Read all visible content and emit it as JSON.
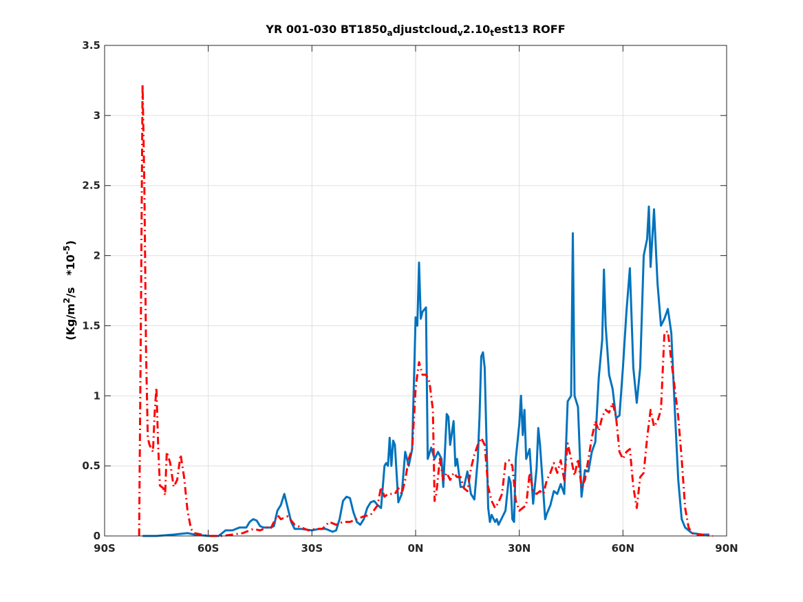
{
  "chart_data": {
    "type": "line",
    "title": {
      "main": "YR 001-030 BT1850",
      "parts": [
        {
          "text": "YR 001-030 BT1850",
          "sub": false
        },
        {
          "text": "a",
          "sub": true
        },
        {
          "text": "djustcloud",
          "sub": false
        },
        {
          "text": "v",
          "sub": true
        },
        {
          "text": "2.10",
          "sub": false
        },
        {
          "text": "t",
          "sub": true
        },
        {
          "text": "est13 ROFF",
          "sub": false
        }
      ]
    },
    "ylabel": {
      "prefix": "(Kg/m",
      "sup1": "2",
      "middle": "/s   *10",
      "sup2": "-5",
      "suffix": ")"
    },
    "xlim": [
      -90,
      90
    ],
    "ylim": [
      0,
      3.5
    ],
    "xticks": [
      -90,
      -60,
      -30,
      0,
      30,
      60,
      90
    ],
    "xtick_labels": [
      "90S",
      "60S",
      "30S",
      "0N",
      "30N",
      "60N",
      "90N"
    ],
    "yticks": [
      0,
      0.5,
      1,
      1.5,
      2,
      2.5,
      3,
      3.5
    ],
    "ytick_labels": [
      "0",
      "0.5",
      "1",
      "1.5",
      "2",
      "2.5",
      "3",
      "3.5"
    ],
    "grid": true,
    "series": [
      {
        "color": "#0072bd",
        "style": "solid",
        "points": [
          [
            -79,
            0.0
          ],
          [
            -75,
            0.0
          ],
          [
            -70,
            0.01
          ],
          [
            -66,
            0.02
          ],
          [
            -64,
            0.01
          ],
          [
            -60,
            0.0
          ],
          [
            -57,
            0.0
          ],
          [
            -55,
            0.04
          ],
          [
            -53,
            0.04
          ],
          [
            -51,
            0.06
          ],
          [
            -49,
            0.06
          ],
          [
            -48,
            0.1
          ],
          [
            -47,
            0.12
          ],
          [
            -46,
            0.11
          ],
          [
            -45,
            0.07
          ],
          [
            -44,
            0.06
          ],
          [
            -42,
            0.06
          ],
          [
            -41,
            0.07
          ],
          [
            -40,
            0.18
          ],
          [
            -39,
            0.22
          ],
          [
            -38,
            0.3
          ],
          [
            -37,
            0.2
          ],
          [
            -36,
            0.1
          ],
          [
            -35,
            0.05
          ],
          [
            -33,
            0.05
          ],
          [
            -30,
            0.04
          ],
          [
            -28,
            0.05
          ],
          [
            -26,
            0.05
          ],
          [
            -25,
            0.04
          ],
          [
            -24,
            0.03
          ],
          [
            -23,
            0.04
          ],
          [
            -22,
            0.12
          ],
          [
            -21,
            0.25
          ],
          [
            -20,
            0.28
          ],
          [
            -19,
            0.27
          ],
          [
            -18,
            0.17
          ],
          [
            -17,
            0.1
          ],
          [
            -16,
            0.08
          ],
          [
            -15,
            0.12
          ],
          [
            -14,
            0.2
          ],
          [
            -13,
            0.24
          ],
          [
            -12,
            0.25
          ],
          [
            -11,
            0.22
          ],
          [
            -10,
            0.2
          ],
          [
            -9,
            0.5
          ],
          [
            -8.5,
            0.52
          ],
          [
            -8,
            0.5
          ],
          [
            -7.5,
            0.7
          ],
          [
            -7,
            0.5
          ],
          [
            -6.5,
            0.68
          ],
          [
            -6,
            0.65
          ],
          [
            -5,
            0.24
          ],
          [
            -4,
            0.3
          ],
          [
            -3,
            0.6
          ],
          [
            -2,
            0.5
          ],
          [
            -1,
            0.62
          ],
          [
            0,
            1.56
          ],
          [
            0.5,
            1.5
          ],
          [
            1,
            1.95
          ],
          [
            1.5,
            1.55
          ],
          [
            2,
            1.6
          ],
          [
            3,
            1.63
          ],
          [
            3.5,
            0.55
          ],
          [
            4.5,
            0.63
          ],
          [
            5.5,
            0.55
          ],
          [
            6.5,
            0.6
          ],
          [
            7.5,
            0.55
          ],
          [
            8,
            0.35
          ],
          [
            9,
            0.87
          ],
          [
            9.5,
            0.85
          ],
          [
            10,
            0.65
          ],
          [
            11,
            0.82
          ],
          [
            11.5,
            0.5
          ],
          [
            12,
            0.55
          ],
          [
            13,
            0.35
          ],
          [
            14,
            0.35
          ],
          [
            15,
            0.46
          ],
          [
            16,
            0.3
          ],
          [
            17,
            0.26
          ],
          [
            18,
            0.55
          ],
          [
            18.5,
            0.85
          ],
          [
            19,
            1.28
          ],
          [
            19.5,
            1.31
          ],
          [
            20,
            1.2
          ],
          [
            21,
            0.2
          ],
          [
            21.5,
            0.1
          ],
          [
            22,
            0.15
          ],
          [
            23,
            0.1
          ],
          [
            23.5,
            0.12
          ],
          [
            24,
            0.08
          ],
          [
            25,
            0.13
          ],
          [
            26,
            0.18
          ],
          [
            27,
            0.42
          ],
          [
            27.5,
            0.38
          ],
          [
            28,
            0.12
          ],
          [
            28.5,
            0.1
          ],
          [
            29,
            0.55
          ],
          [
            30,
            0.8
          ],
          [
            30.5,
            1.0
          ],
          [
            31,
            0.72
          ],
          [
            31.5,
            0.9
          ],
          [
            32,
            0.55
          ],
          [
            33,
            0.62
          ],
          [
            34,
            0.23
          ],
          [
            35,
            0.48
          ],
          [
            35.5,
            0.77
          ],
          [
            36,
            0.65
          ],
          [
            37,
            0.3
          ],
          [
            37.5,
            0.12
          ],
          [
            38,
            0.16
          ],
          [
            39,
            0.22
          ],
          [
            40,
            0.32
          ],
          [
            41,
            0.3
          ],
          [
            42,
            0.37
          ],
          [
            43,
            0.3
          ],
          [
            44,
            0.96
          ],
          [
            45,
            1.0
          ],
          [
            45.5,
            2.16
          ],
          [
            46,
            1.0
          ],
          [
            47,
            0.92
          ],
          [
            48,
            0.28
          ],
          [
            49,
            0.47
          ],
          [
            50,
            0.46
          ],
          [
            51,
            0.6
          ],
          [
            52,
            0.67
          ],
          [
            53,
            1.13
          ],
          [
            54,
            1.4
          ],
          [
            54.5,
            1.9
          ],
          [
            55,
            1.5
          ],
          [
            56,
            1.15
          ],
          [
            57,
            1.05
          ],
          [
            58,
            0.84
          ],
          [
            59,
            0.86
          ],
          [
            60,
            1.2
          ],
          [
            61,
            1.6
          ],
          [
            62,
            1.91
          ],
          [
            63,
            1.2
          ],
          [
            64,
            0.95
          ],
          [
            65,
            1.2
          ],
          [
            66,
            2.0
          ],
          [
            67,
            2.12
          ],
          [
            67.5,
            2.35
          ],
          [
            68,
            1.92
          ],
          [
            69,
            2.33
          ],
          [
            70,
            1.8
          ],
          [
            71,
            1.5
          ],
          [
            72,
            1.55
          ],
          [
            73,
            1.62
          ],
          [
            74,
            1.45
          ],
          [
            75,
            0.9
          ],
          [
            76,
            0.4
          ],
          [
            77,
            0.12
          ],
          [
            78,
            0.06
          ],
          [
            80,
            0.02
          ],
          [
            83,
            0.01
          ],
          [
            85,
            0.01
          ]
        ]
      },
      {
        "color": "#ff0000",
        "style": "dashdot",
        "points": [
          [
            -80,
            0.0
          ],
          [
            -79.5,
            1.5
          ],
          [
            -79,
            3.22
          ],
          [
            -78.5,
            2.5
          ],
          [
            -78,
            1.3
          ],
          [
            -77.5,
            0.7
          ],
          [
            -77,
            0.65
          ],
          [
            -76,
            0.6
          ],
          [
            -75.5,
            0.88
          ],
          [
            -75,
            1.06
          ],
          [
            -74.5,
            0.65
          ],
          [
            -74,
            0.36
          ],
          [
            -73,
            0.34
          ],
          [
            -72.5,
            0.29
          ],
          [
            -72,
            0.6
          ],
          [
            -71,
            0.52
          ],
          [
            -70,
            0.35
          ],
          [
            -69,
            0.4
          ],
          [
            -68,
            0.58
          ],
          [
            -67,
            0.42
          ],
          [
            -66,
            0.18
          ],
          [
            -65,
            0.05
          ],
          [
            -64,
            0.02
          ],
          [
            -60,
            0.0
          ],
          [
            -56,
            0.0
          ],
          [
            -53,
            0.01
          ],
          [
            -50,
            0.02
          ],
          [
            -47,
            0.05
          ],
          [
            -45,
            0.04
          ],
          [
            -44,
            0.05
          ],
          [
            -43,
            0.06
          ],
          [
            -42,
            0.05
          ],
          [
            -40,
            0.15
          ],
          [
            -39,
            0.12
          ],
          [
            -37,
            0.14
          ],
          [
            -35,
            0.08
          ],
          [
            -33,
            0.06
          ],
          [
            -31,
            0.04
          ],
          [
            -29,
            0.05
          ],
          [
            -27,
            0.05
          ],
          [
            -25,
            0.1
          ],
          [
            -23,
            0.08
          ],
          [
            -21,
            0.1
          ],
          [
            -19,
            0.1
          ],
          [
            -17,
            0.12
          ],
          [
            -15,
            0.14
          ],
          [
            -13,
            0.15
          ],
          [
            -11,
            0.22
          ],
          [
            -10,
            0.35
          ],
          [
            -9,
            0.28
          ],
          [
            -8,
            0.3
          ],
          [
            -6,
            0.3
          ],
          [
            -5,
            0.34
          ],
          [
            -4,
            0.3
          ],
          [
            -3,
            0.4
          ],
          [
            -2,
            0.55
          ],
          [
            -1,
            0.62
          ],
          [
            0,
            1.05
          ],
          [
            0.5,
            1.15
          ],
          [
            1,
            1.24
          ],
          [
            2,
            1.15
          ],
          [
            3,
            1.15
          ],
          [
            4,
            1.1
          ],
          [
            5,
            0.9
          ],
          [
            5.5,
            0.25
          ],
          [
            6,
            0.3
          ],
          [
            7,
            0.55
          ],
          [
            8,
            0.4
          ],
          [
            9,
            0.45
          ],
          [
            10,
            0.4
          ],
          [
            11,
            0.45
          ],
          [
            12,
            0.42
          ],
          [
            13,
            0.42
          ],
          [
            14,
            0.34
          ],
          [
            15,
            0.32
          ],
          [
            16,
            0.48
          ],
          [
            17,
            0.58
          ],
          [
            18,
            0.65
          ],
          [
            19,
            0.7
          ],
          [
            20,
            0.65
          ],
          [
            21,
            0.35
          ],
          [
            22,
            0.25
          ],
          [
            23,
            0.2
          ],
          [
            24,
            0.24
          ],
          [
            25,
            0.3
          ],
          [
            26,
            0.52
          ],
          [
            27,
            0.54
          ],
          [
            28,
            0.5
          ],
          [
            29,
            0.25
          ],
          [
            30,
            0.18
          ],
          [
            31,
            0.2
          ],
          [
            32,
            0.22
          ],
          [
            33,
            0.45
          ],
          [
            34,
            0.32
          ],
          [
            35,
            0.3
          ],
          [
            36,
            0.32
          ],
          [
            37,
            0.3
          ],
          [
            38,
            0.4
          ],
          [
            39,
            0.45
          ],
          [
            40,
            0.52
          ],
          [
            41,
            0.45
          ],
          [
            42,
            0.54
          ],
          [
            43,
            0.4
          ],
          [
            44,
            0.66
          ],
          [
            45,
            0.55
          ],
          [
            46,
            0.43
          ],
          [
            47,
            0.55
          ],
          [
            48,
            0.35
          ],
          [
            49,
            0.4
          ],
          [
            50,
            0.55
          ],
          [
            51,
            0.7
          ],
          [
            52,
            0.82
          ],
          [
            53,
            0.75
          ],
          [
            54,
            0.85
          ],
          [
            55,
            0.9
          ],
          [
            56,
            0.88
          ],
          [
            57,
            0.95
          ],
          [
            58,
            0.85
          ],
          [
            59,
            0.6
          ],
          [
            60,
            0.55
          ],
          [
            61,
            0.6
          ],
          [
            62,
            0.62
          ],
          [
            63,
            0.35
          ],
          [
            64,
            0.2
          ],
          [
            65,
            0.42
          ],
          [
            66,
            0.45
          ],
          [
            67,
            0.7
          ],
          [
            68,
            0.9
          ],
          [
            69,
            0.78
          ],
          [
            70,
            0.82
          ],
          [
            71,
            0.9
          ],
          [
            72,
            1.45
          ],
          [
            73,
            1.46
          ],
          [
            74,
            1.25
          ],
          [
            75,
            1.05
          ],
          [
            76,
            0.85
          ],
          [
            77,
            0.55
          ],
          [
            78,
            0.2
          ],
          [
            79,
            0.06
          ],
          [
            80,
            0.02
          ],
          [
            81,
            0.01
          ],
          [
            82,
            0.01
          ],
          [
            86,
            0.0
          ]
        ]
      }
    ]
  }
}
